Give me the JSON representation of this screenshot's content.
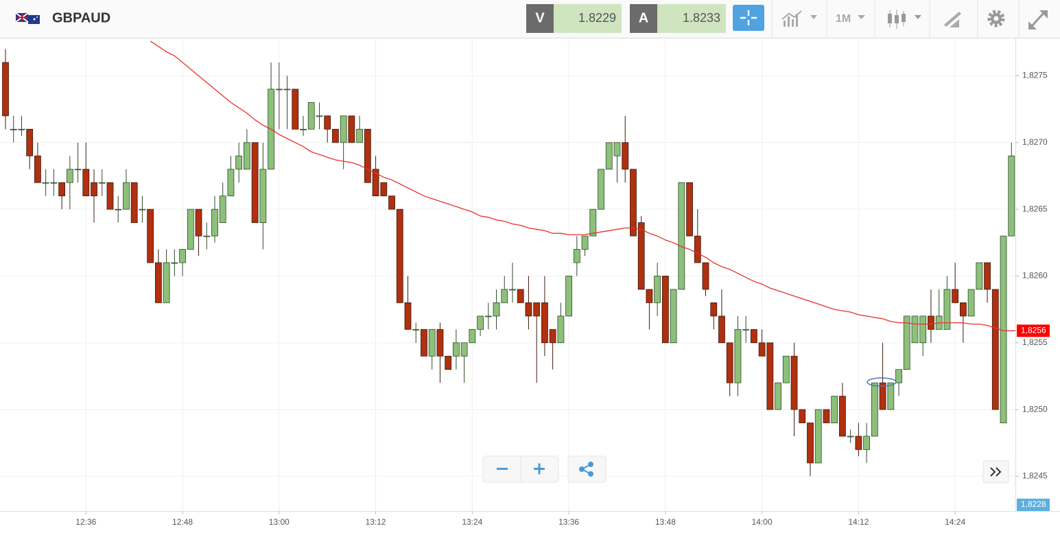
{
  "header": {
    "symbol": "GBPAUD",
    "sell_label": "V",
    "sell_price": "1.8229",
    "buy_label": "A",
    "buy_price": "1.8233",
    "timeframe": "1M"
  },
  "chart_data": {
    "type": "candlestick",
    "categories": [
      null,
      null,
      null,
      null,
      null,
      null,
      null,
      null,
      null,
      null,
      "12:36",
      null,
      null,
      null,
      null,
      null,
      null,
      null,
      null,
      null,
      null,
      null,
      "12:48",
      null,
      null,
      null,
      null,
      null,
      null,
      null,
      null,
      null,
      null,
      null,
      "13:00",
      null,
      null,
      null,
      null,
      null,
      null,
      null,
      null,
      null,
      null,
      null,
      "13:12",
      null,
      null,
      null,
      null,
      null,
      null,
      null,
      null,
      null,
      null,
      null,
      "13:24",
      null,
      null,
      null,
      null,
      null,
      null,
      null,
      null,
      null,
      null,
      null,
      "13:36",
      null,
      null,
      null,
      null,
      null,
      null,
      null,
      null,
      null,
      null,
      null,
      "13:48",
      null,
      null,
      null,
      null,
      null,
      null,
      null,
      null,
      null,
      null,
      null,
      "14:00",
      null,
      null,
      null,
      null,
      null,
      null,
      null,
      null,
      null,
      null,
      null,
      "14:12",
      null,
      null,
      null,
      null,
      null,
      null,
      null,
      null,
      null,
      null,
      null,
      "14:24",
      null,
      null,
      null,
      null,
      null,
      null,
      null
    ],
    "open": [
      1.8276,
      1.8271,
      1.8271,
      1.8271,
      1.8269,
      1.8267,
      1.8267,
      1.8267,
      1.8267,
      1.8268,
      1.8268,
      1.8267,
      1.8267,
      1.8267,
      1.8265,
      1.8265,
      1.8267,
      1.8265,
      1.8265,
      1.8261,
      1.8258,
      1.8261,
      1.8261,
      1.8262,
      1.8265,
      1.8263,
      1.8263,
      1.8264,
      1.8266,
      1.8268,
      1.8268,
      1.827,
      1.8264,
      1.8268,
      1.8274,
      1.8274,
      1.8274,
      1.8271,
      1.8271,
      1.8272,
      1.8272,
      1.8271,
      1.827,
      1.8272,
      1.827,
      1.8271,
      1.8268,
      1.8267,
      1.8266,
      1.8265,
      1.8258,
      1.8256,
      1.8256,
      1.8254,
      1.8256,
      1.8254,
      1.8254,
      1.8254,
      1.8255,
      1.8256,
      1.8257,
      1.8257,
      1.8258,
      1.8259,
      1.8259,
      1.8258,
      1.8258,
      1.8258,
      1.8256,
      1.8255,
      1.8257,
      1.8261,
      1.8262,
      1.8263,
      1.8265,
      1.8268,
      1.8269,
      1.827,
      1.8268,
      1.8264,
      1.8259,
      1.8258,
      1.826,
      1.8255,
      1.8259,
      1.8267,
      1.8263,
      1.8261,
      1.8258,
      1.8257,
      1.8255,
      1.8252,
      1.8256,
      1.8256,
      1.8255,
      1.8255,
      1.825,
      1.8252,
      1.8254,
      1.825,
      1.8249,
      1.8246,
      1.825,
      1.8249,
      1.8251,
      1.8248,
      1.8248,
      1.8247,
      1.8248,
      1.8252,
      1.825,
      1.8252,
      1.8253,
      1.8255,
      1.8255,
      1.8257,
      1.8256,
      1.8256,
      1.8259,
      1.8258,
      1.8257,
      1.8259,
      1.8261,
      1.8259,
      1.8249,
      1.8263
    ],
    "high": [
      1.8277,
      1.8272,
      1.8272,
      1.8271,
      1.827,
      1.8268,
      1.8268,
      1.8267,
      1.8269,
      1.827,
      1.827,
      1.8268,
      1.8268,
      1.8267,
      1.8266,
      1.8268,
      1.8267,
      1.8266,
      1.8265,
      1.8262,
      1.8262,
      1.8262,
      1.8262,
      1.8265,
      1.8265,
      1.8264,
      1.8266,
      1.8267,
      1.8269,
      1.827,
      1.8271,
      1.827,
      1.827,
      1.8276,
      1.8276,
      1.8275,
      1.8274,
      1.8272,
      1.8273,
      1.8273,
      1.8272,
      1.8271,
      1.8272,
      1.8272,
      1.8272,
      1.8271,
      1.8269,
      1.8267,
      1.8266,
      1.8265,
      1.826,
      1.82565,
      1.8256,
      1.8256,
      1.82565,
      1.8254,
      1.8256,
      1.8255,
      1.8256,
      1.8257,
      1.8258,
      1.8259,
      1.826,
      1.8261,
      1.8259,
      1.826,
      1.8258,
      1.826,
      1.8256,
      1.8258,
      1.826,
      1.8263,
      1.8263,
      1.8265,
      1.8268,
      1.827,
      1.827,
      1.8272,
      1.8268,
      1.82645,
      1.8259,
      1.8261,
      1.826,
      1.8259,
      1.8267,
      1.8267,
      1.8265,
      1.8261,
      1.8258,
      1.8259,
      1.8255,
      1.8257,
      1.8257,
      1.8256,
      1.8256,
      1.8255,
      1.8252,
      1.8254,
      1.8255,
      1.825,
      1.8249,
      1.825,
      1.825,
      1.8251,
      1.8252,
      1.82485,
      1.8249,
      1.8249,
      1.8252,
      1.8255,
      1.8252,
      1.8253,
      1.8257,
      1.8257,
      1.8257,
      1.8259,
      1.8259,
      1.826,
      1.8261,
      1.8258,
      1.8259,
      1.8261,
      1.8261,
      1.8259,
      1.8263,
      1.827
    ],
    "low": [
      1.8271,
      1.827,
      1.82705,
      1.8268,
      1.8267,
      1.8266,
      1.8266,
      1.8265,
      1.8265,
      1.8267,
      1.8266,
      1.8264,
      1.8266,
      1.8265,
      1.8264,
      1.8265,
      1.8264,
      1.8264,
      1.8261,
      1.8258,
      1.8258,
      1.826,
      1.826,
      1.8262,
      1.82615,
      1.8262,
      1.82625,
      1.8264,
      1.8266,
      1.8267,
      1.8268,
      1.8264,
      1.8262,
      1.8268,
      1.8271,
      1.8271,
      1.8271,
      1.82705,
      1.8271,
      1.8271,
      1.827,
      1.827,
      1.8268,
      1.827,
      1.827,
      1.8267,
      1.8266,
      1.8266,
      1.8265,
      1.8258,
      1.8256,
      1.8255,
      1.8254,
      1.8253,
      1.8252,
      1.8253,
      1.8253,
      1.8252,
      1.8255,
      1.82555,
      1.8256,
      1.8256,
      1.8258,
      1.8258,
      1.8258,
      1.8256,
      1.8252,
      1.8254,
      1.8253,
      1.8255,
      1.8257,
      1.826,
      1.82615,
      1.8263,
      1.8265,
      1.8268,
      1.8267,
      1.8267,
      1.8263,
      1.8259,
      1.8256,
      1.8257,
      1.8255,
      1.8255,
      1.8259,
      1.8263,
      1.8261,
      1.82585,
      1.8256,
      1.8255,
      1.8251,
      1.8251,
      1.8255,
      1.8255,
      1.8254,
      1.825,
      1.825,
      1.8252,
      1.8248,
      1.8249,
      1.8245,
      1.8246,
      1.8249,
      1.8249,
      1.8248,
      1.82475,
      1.82465,
      1.8246,
      1.8248,
      1.825,
      1.825,
      1.8251,
      1.8253,
      1.8255,
      1.8254,
      1.8255,
      1.8256,
      1.8256,
      1.8258,
      1.8255,
      1.8257,
      1.8259,
      1.8258,
      1.825,
      1.8249,
      1.8263
    ],
    "close": [
      1.8272,
      1.8271,
      1.8271,
      1.8269,
      1.8267,
      1.8267,
      1.8267,
      1.8266,
      1.8268,
      1.8268,
      1.8266,
      1.8266,
      1.8267,
      1.8265,
      1.8265,
      1.8267,
      1.8264,
      1.8265,
      1.8261,
      1.8258,
      1.8261,
      1.8261,
      1.8262,
      1.8265,
      1.8263,
      1.8263,
      1.8265,
      1.8266,
      1.8268,
      1.8269,
      1.827,
      1.8264,
      1.8268,
      1.8274,
      1.8274,
      1.8274,
      1.8271,
      1.8271,
      1.8273,
      1.8272,
      1.8271,
      1.827,
      1.8272,
      1.827,
      1.8271,
      1.8267,
      1.8266,
      1.8266,
      1.8265,
      1.8258,
      1.8256,
      1.8256,
      1.8254,
      1.8256,
      1.8254,
      1.8253,
      1.8255,
      1.8255,
      1.8256,
      1.8257,
      1.8257,
      1.8258,
      1.8259,
      1.8259,
      1.8258,
      1.8257,
      1.8257,
      1.8255,
      1.8255,
      1.8257,
      1.826,
      1.8262,
      1.8263,
      1.8265,
      1.8268,
      1.827,
      1.827,
      1.8268,
      1.8263,
      1.8259,
      1.8258,
      1.826,
      1.8255,
      1.8259,
      1.8267,
      1.8263,
      1.8261,
      1.8259,
      1.8257,
      1.8255,
      1.8252,
      1.8256,
      1.8256,
      1.8255,
      1.8254,
      1.825,
      1.8252,
      1.8254,
      1.825,
      1.8249,
      1.8246,
      1.825,
      1.8249,
      1.8251,
      1.8248,
      1.8248,
      1.8247,
      1.8248,
      1.8252,
      1.825,
      1.8252,
      1.8253,
      1.8257,
      1.8257,
      1.8257,
      1.8256,
      1.8257,
      1.8259,
      1.8258,
      1.8257,
      1.8259,
      1.8261,
      1.8259,
      1.825,
      1.8263,
      1.8269
    ],
    "up_color": "#8dc07a",
    "down_color": "#b0300f",
    "ma": {
      "color": "#e8302a",
      "values": [
        null,
        null,
        null,
        null,
        null,
        null,
        null,
        null,
        null,
        null,
        null,
        null,
        null,
        null,
        null,
        null,
        null,
        null,
        1.82776,
        1.82772,
        1.82768,
        1.82765,
        1.8276,
        1.82755,
        1.8275,
        1.82745,
        1.8274,
        1.82735,
        1.8273,
        1.82726,
        1.82722,
        1.82717,
        1.82713,
        1.8271,
        1.82706,
        1.82703,
        1.827,
        1.82697,
        1.82693,
        1.82691,
        1.82689,
        1.82687,
        1.82686,
        1.82685,
        1.82683,
        1.8268,
        1.82677,
        1.82674,
        1.82672,
        1.82669,
        1.82666,
        1.82663,
        1.8266,
        1.82658,
        1.82656,
        1.82654,
        1.82652,
        1.8265,
        1.82648,
        1.82645,
        1.82644,
        1.82642,
        1.82641,
        1.82639,
        1.82638,
        1.82636,
        1.82635,
        1.82634,
        1.82632,
        1.82632,
        1.82631,
        1.82631,
        1.82631,
        1.82632,
        1.82633,
        1.82634,
        1.82635,
        1.82636,
        1.82636,
        1.82635,
        1.82632,
        1.8263,
        1.82627,
        1.82625,
        1.82622,
        1.8262,
        1.82617,
        1.82614,
        1.8261,
        1.82607,
        1.82605,
        1.82602,
        1.82599,
        1.82596,
        1.82594,
        1.82591,
        1.82589,
        1.82587,
        1.82585,
        1.82583,
        1.82581,
        1.82579,
        1.82577,
        1.82575,
        1.82574,
        1.82573,
        1.82571,
        1.8257,
        1.82569,
        1.82568,
        1.82566,
        1.82565,
        1.82565,
        1.82564,
        1.82564,
        1.82564,
        1.82565,
        1.82565,
        1.82565,
        1.82565,
        1.82564,
        1.82564,
        1.82563,
        1.82561,
        1.82559,
        1.82559
      ]
    },
    "ma_label": "1,8256",
    "price_label": "1,8228",
    "ylim": [
      1.82424,
      1.82778
    ],
    "yticks": [
      {
        "value": 1.8245,
        "label": "1,8245"
      },
      {
        "value": 1.825,
        "label": "1,8250"
      },
      {
        "value": 1.8255,
        "label": "1,8255"
      },
      {
        "value": 1.826,
        "label": "1,8260"
      },
      {
        "value": 1.8265,
        "label": "1,8265"
      },
      {
        "value": 1.827,
        "label": "1,8270"
      },
      {
        "value": 1.8275,
        "label": "1,8275"
      }
    ],
    "grid": true
  }
}
